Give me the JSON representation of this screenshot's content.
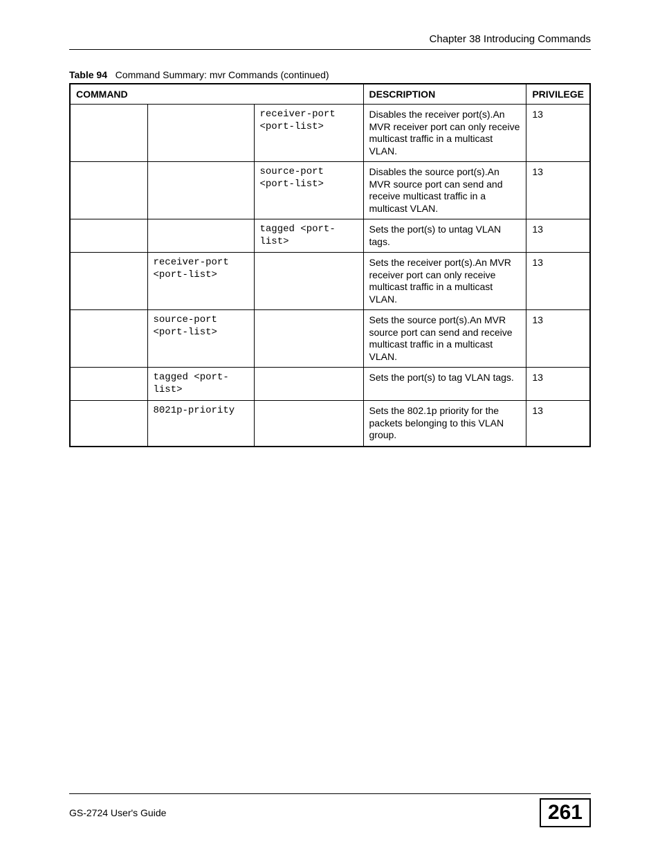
{
  "header": {
    "chapter": "Chapter 38 Introducing Commands"
  },
  "table_caption": {
    "label": "Table 94",
    "text": "Command Summary: mvr Commands (continued)"
  },
  "table": {
    "headers": {
      "command": "COMMAND",
      "description": "DESCRIPTION",
      "privilege": "PRIVILEGE"
    },
    "rows": [
      {
        "c1": "",
        "c2": "",
        "c3": "receiver-port <port-list>",
        "desc": "Disables the receiver port(s).An MVR receiver port can only receive multicast traffic in a multicast VLAN.",
        "priv": "13"
      },
      {
        "c1": "",
        "c2": "",
        "c3": "source-port <port-list>",
        "desc": "Disables the source port(s).An MVR source port can send and receive multicast traffic in a multicast VLAN.",
        "priv": "13"
      },
      {
        "c1": "",
        "c2": "",
        "c3": "tagged <port-list>",
        "desc": "Sets the port(s) to untag VLAN tags.",
        "priv": "13"
      },
      {
        "c1": "",
        "c2": "receiver-port <port-list>",
        "c3": "",
        "desc": "Sets the receiver port(s).An MVR receiver port can only receive multicast traffic in a multicast VLAN.",
        "priv": "13"
      },
      {
        "c1": "",
        "c2": "source-port <port-list>",
        "c3": "",
        "desc": "Sets the source port(s).An MVR source port can send and receive multicast traffic in a multicast VLAN.",
        "priv": "13"
      },
      {
        "c1": "",
        "c2": "tagged <port-list>",
        "c3": "",
        "desc": "Sets the port(s) to tag VLAN tags.",
        "priv": "13"
      },
      {
        "c1": "",
        "c2": "8021p-priority",
        "c3": "",
        "desc": "Sets the 802.1p priority for the packets belonging to this VLAN group.",
        "priv": "13"
      }
    ]
  },
  "footer": {
    "guide": "GS-2724 User's Guide",
    "page": "261"
  }
}
